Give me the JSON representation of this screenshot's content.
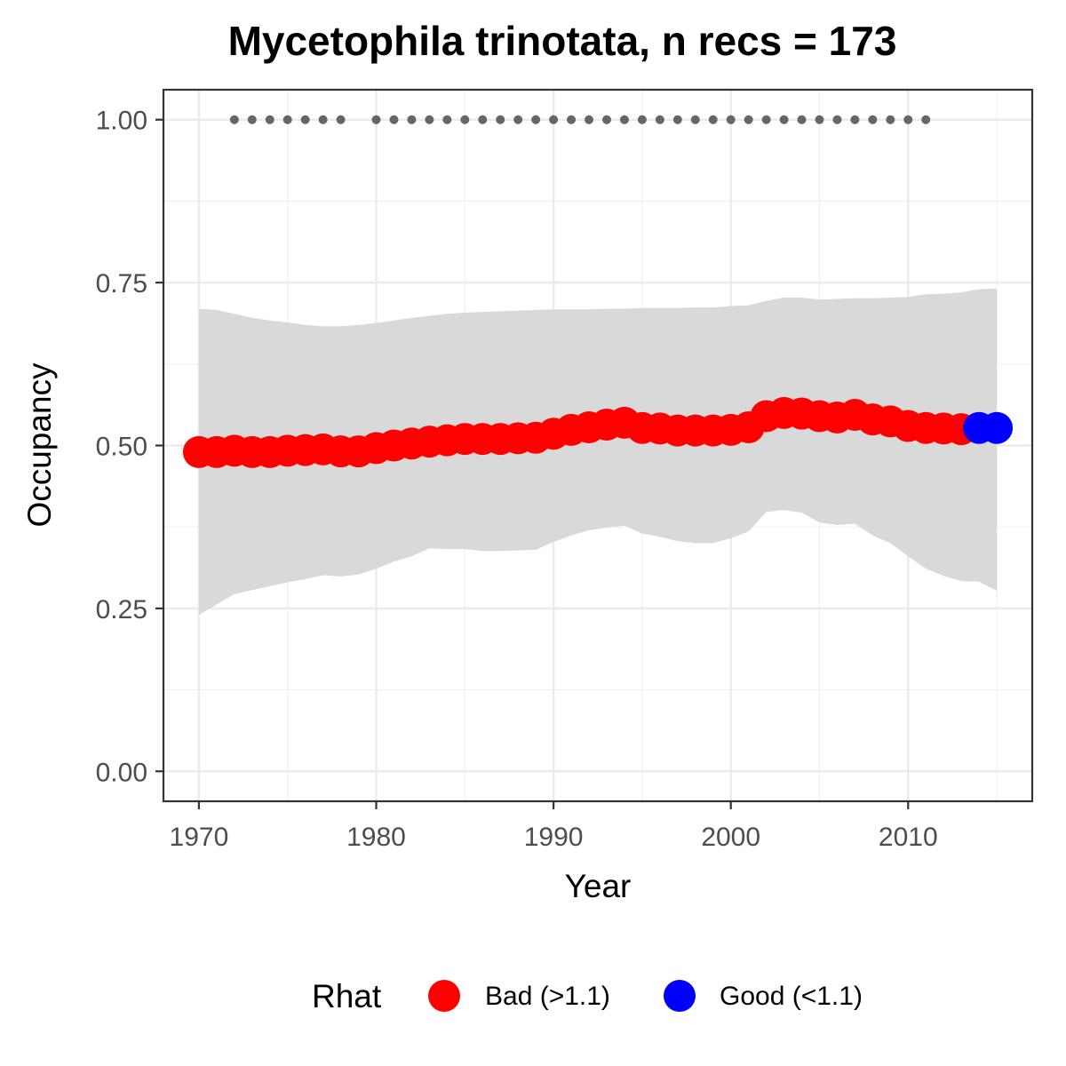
{
  "chart_data": {
    "type": "line",
    "title": "Mycetophila trinotata, n recs = 173",
    "xlabel": "Year",
    "ylabel": "Occupancy",
    "xlim": [
      1968,
      2017
    ],
    "ylim": [
      -0.046,
      1.046
    ],
    "x_ticks": [
      1970,
      1980,
      1990,
      2000,
      2010
    ],
    "y_ticks": [
      0.0,
      0.25,
      0.5,
      0.75,
      1.0
    ],
    "y_tick_labels": [
      "0.00",
      "0.25",
      "0.50",
      "0.75",
      "1.00"
    ],
    "grid": true,
    "legend": {
      "title": "Rhat",
      "position": "bottom",
      "entries": [
        {
          "label": "Bad (>1.1)",
          "color": "#FF0000"
        },
        {
          "label": "Good (<1.1)",
          "color": "#0000FF"
        }
      ]
    },
    "colors": {
      "bad": "#FF0000",
      "good": "#0000FF",
      "ribbon": "#D9D9D9",
      "records": "#666666"
    },
    "series": [
      {
        "name": "Occupancy",
        "x": [
          1970,
          1971,
          1972,
          1973,
          1974,
          1975,
          1976,
          1977,
          1978,
          1979,
          1980,
          1981,
          1982,
          1983,
          1984,
          1985,
          1986,
          1987,
          1988,
          1989,
          1990,
          1991,
          1992,
          1993,
          1994,
          1995,
          1996,
          1997,
          1998,
          1999,
          2000,
          2001,
          2002,
          2003,
          2004,
          2005,
          2006,
          2007,
          2008,
          2009,
          2010,
          2011,
          2012,
          2013,
          2014,
          2015
        ],
        "y": [
          0.49,
          0.49,
          0.492,
          0.49,
          0.49,
          0.492,
          0.493,
          0.494,
          0.491,
          0.491,
          0.496,
          0.5,
          0.503,
          0.506,
          0.508,
          0.51,
          0.51,
          0.51,
          0.511,
          0.512,
          0.518,
          0.524,
          0.528,
          0.532,
          0.535,
          0.527,
          0.526,
          0.523,
          0.523,
          0.523,
          0.524,
          0.528,
          0.545,
          0.55,
          0.549,
          0.545,
          0.543,
          0.547,
          0.54,
          0.537,
          0.53,
          0.527,
          0.526,
          0.525,
          0.527,
          0.527
        ],
        "lower": [
          0.24,
          0.256,
          0.272,
          0.278,
          0.284,
          0.29,
          0.295,
          0.301,
          0.299,
          0.302,
          0.311,
          0.322,
          0.33,
          0.342,
          0.341,
          0.341,
          0.338,
          0.338,
          0.339,
          0.34,
          0.352,
          0.362,
          0.37,
          0.374,
          0.377,
          0.365,
          0.36,
          0.353,
          0.35,
          0.35,
          0.358,
          0.368,
          0.398,
          0.401,
          0.397,
          0.382,
          0.378,
          0.38,
          0.362,
          0.35,
          0.33,
          0.311,
          0.3,
          0.292,
          0.291,
          0.277
        ],
        "upper": [
          0.71,
          0.708,
          0.702,
          0.696,
          0.692,
          0.689,
          0.685,
          0.683,
          0.683,
          0.685,
          0.688,
          0.692,
          0.696,
          0.699,
          0.702,
          0.704,
          0.705,
          0.706,
          0.707,
          0.708,
          0.709,
          0.709,
          0.709,
          0.71,
          0.71,
          0.711,
          0.711,
          0.711,
          0.712,
          0.712,
          0.714,
          0.715,
          0.722,
          0.727,
          0.727,
          0.724,
          0.725,
          0.726,
          0.726,
          0.727,
          0.728,
          0.732,
          0.733,
          0.735,
          0.74,
          0.741
        ],
        "rhat": [
          "bad",
          "bad",
          "bad",
          "bad",
          "bad",
          "bad",
          "bad",
          "bad",
          "bad",
          "bad",
          "bad",
          "bad",
          "bad",
          "bad",
          "bad",
          "bad",
          "bad",
          "bad",
          "bad",
          "bad",
          "bad",
          "bad",
          "bad",
          "bad",
          "bad",
          "bad",
          "bad",
          "bad",
          "bad",
          "bad",
          "bad",
          "bad",
          "bad",
          "bad",
          "bad",
          "bad",
          "bad",
          "bad",
          "bad",
          "bad",
          "bad",
          "bad",
          "bad",
          "bad",
          "good",
          "good"
        ]
      },
      {
        "name": "Records",
        "x": [
          1972,
          1973,
          1974,
          1975,
          1976,
          1977,
          1978,
          1980,
          1981,
          1982,
          1983,
          1984,
          1985,
          1986,
          1987,
          1988,
          1989,
          1990,
          1991,
          1992,
          1993,
          1994,
          1995,
          1996,
          1997,
          1998,
          1999,
          2000,
          2001,
          2002,
          2003,
          2004,
          2005,
          2006,
          2007,
          2008,
          2009,
          2010,
          2011
        ],
        "y": [
          1,
          1,
          1,
          1,
          1,
          1,
          1,
          1,
          1,
          1,
          1,
          1,
          1,
          1,
          1,
          1,
          1,
          1,
          1,
          1,
          1,
          1,
          1,
          1,
          1,
          1,
          1,
          1,
          1,
          1,
          1,
          1,
          1,
          1,
          1,
          1,
          1,
          1,
          1
        ]
      }
    ]
  }
}
